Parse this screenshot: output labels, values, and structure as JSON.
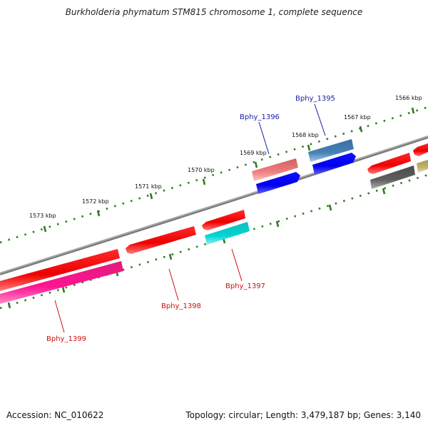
{
  "title": "Burkholderia phymatum STM815 chromosome 1, complete sequence",
  "footer": {
    "accession": "Accession: NC_010622",
    "topology": "Topology: circular; Length: 3,479,187 bp; Genes: 3,140"
  },
  "scale_labels": {
    "kbp_1573": "1573 kbp",
    "kbp_1572": "1572 kbp",
    "kbp_1571": "1571 kbp",
    "kbp_1570": "1570 kbp",
    "kbp_1569": "1569 kbp",
    "kbp_1568": "1568 kbp",
    "kbp_1567": "1567 kbp",
    "kbp_1566": "1566 kbp"
  },
  "gene_labels": {
    "bphy_1395": "Bphy_1395",
    "bphy_1396": "Bphy_1396",
    "bphy_1397": "Bphy_1397",
    "bphy_1398": "Bphy_1398",
    "bphy_1399": "Bphy_1399"
  },
  "colors": {
    "backbone": "#8a8a8a",
    "ticks": "#2e7d1f",
    "label_blue": "#1a1aaa",
    "label_red": "#cc1111"
  }
}
